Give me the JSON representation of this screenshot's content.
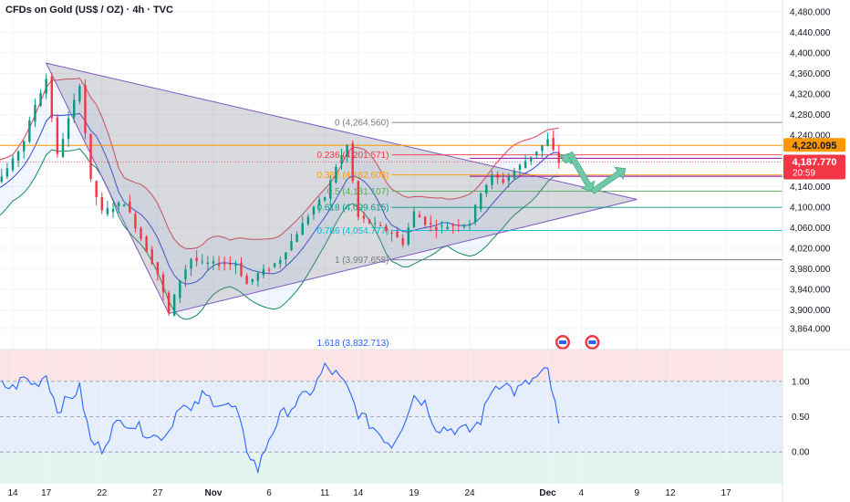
{
  "title": "CFDs on Gold (US$ / OZ) · 4h · TVC",
  "colors": {
    "candle_up": "#089981",
    "candle_down": "#f23645",
    "bb_upper": "#e0414f",
    "bb_lower": "#138a5e",
    "bb_basis": "#2a48d6",
    "triangle_fill": "#787b86",
    "triangle_stroke": "#7e57c2",
    "rsi_line": "#2962ff",
    "price_badge": "#f23645",
    "orange_level": "#ff9800",
    "arrow_fill": "#6fc9a6"
  },
  "chart_data": [
    {
      "type": "candlestick",
      "title": "CFDs on Gold (US$ / OZ) · 4h · TVC",
      "timeframe": "4h",
      "y_axis": {
        "ticks": [
          "4,480.000",
          "4,440.000",
          "4,400.000",
          "4,360.000",
          "4,320.000",
          "4,280.000",
          "4,240.000",
          "4,140.000",
          "4,100.000",
          "4,060.000",
          "4,020.000",
          "3,980.000",
          "3,940.000",
          "3,900.000",
          "3,864.000"
        ],
        "range": [
          3855,
          4485
        ]
      },
      "x_axis": {
        "ticks": [
          "14",
          "17",
          "22",
          "27",
          "Nov",
          "6",
          "11",
          "14",
          "19",
          "24",
          "Dec",
          "4",
          "9",
          "12",
          "17"
        ]
      },
      "price_labels": [
        {
          "value": "4,220.095",
          "kind": "level"
        },
        {
          "value": "4,187.770",
          "kind": "last"
        },
        {
          "value": "20:59",
          "kind": "countdown"
        }
      ],
      "fibonacci": [
        {
          "label": "0 (4,264.560)",
          "price": 4264.56
        },
        {
          "label": "0.236 (4,201.571)",
          "price": 4201.571
        },
        {
          "label": "0.382 (4,162.603)",
          "price": 4162.603
        },
        {
          "label": "0.5 (4,131.107)",
          "price": 4131.107
        },
        {
          "label": "0.618 (4,099.615)",
          "price": 4099.615
        },
        {
          "label": "0.786 (4,054.777)",
          "price": 4054.777
        },
        {
          "label": "1 (3,997.658)",
          "price": 3997.658
        },
        {
          "label": "1.618 (3,832.713)",
          "price": 3832.713
        }
      ],
      "horizontal_levels": [
        4220.095,
        4195,
        4160
      ],
      "symmetrical_triangle": {
        "top_start": 4380,
        "apex": 4115,
        "bottom_start": 3893,
        "start": "Oct 17",
        "end": "Dec 9"
      },
      "price_path": [
        {
          "date": "Oct 10",
          "close": 4120
        },
        {
          "date": "Oct 13",
          "close": 4160
        },
        {
          "date": "Oct 14",
          "close": 4190
        },
        {
          "date": "Oct 15",
          "close": 4230
        },
        {
          "date": "Oct 16",
          "close": 4300
        },
        {
          "date": "Oct 17",
          "close": 4350
        },
        {
          "date": "Oct 18",
          "close": 4200
        },
        {
          "date": "Oct 20",
          "close": 4340
        },
        {
          "date": "Oct 21",
          "close": 4150
        },
        {
          "date": "Oct 22",
          "close": 4090
        },
        {
          "date": "Oct 23",
          "close": 4100
        },
        {
          "date": "Oct 24",
          "close": 4110
        },
        {
          "date": "Oct 27",
          "close": 3970
        },
        {
          "date": "Oct 28",
          "close": 3893
        },
        {
          "date": "Oct 29",
          "close": 3960
        },
        {
          "date": "Oct 30",
          "close": 4000
        },
        {
          "date": "Oct 31",
          "close": 3990
        },
        {
          "date": "Nov 3",
          "close": 3990
        },
        {
          "date": "Nov 4",
          "close": 3950
        },
        {
          "date": "Nov 5",
          "close": 3970
        },
        {
          "date": "Nov 6",
          "close": 3980
        },
        {
          "date": "Nov 7",
          "close": 4000
        },
        {
          "date": "Nov 10",
          "close": 4100
        },
        {
          "date": "Nov 11",
          "close": 4120
        },
        {
          "date": "Nov 12",
          "close": 4180
        },
        {
          "date": "Nov 13",
          "close": 4220
        },
        {
          "date": "Nov 14",
          "close": 4080
        },
        {
          "date": "Nov 17",
          "close": 4050
        },
        {
          "date": "Nov 18",
          "close": 4030
        },
        {
          "date": "Nov 19",
          "close": 4090
        },
        {
          "date": "Nov 20",
          "close": 4070
        },
        {
          "date": "Nov 21",
          "close": 4060
        },
        {
          "date": "Nov 24",
          "close": 4070
        },
        {
          "date": "Nov 25",
          "close": 4130
        },
        {
          "date": "Nov 26",
          "close": 4160
        },
        {
          "date": "Nov 27",
          "close": 4150
        },
        {
          "date": "Nov 28",
          "close": 4170
        },
        {
          "date": "Dec 1",
          "close": 4230
        },
        {
          "date": "Dec 2",
          "close": 4187
        }
      ],
      "projection_path": [
        {
          "date": "Dec 3",
          "price": 4205
        },
        {
          "date": "Dec 5",
          "price": 4130
        },
        {
          "date": "Dec 8",
          "price": 4175
        }
      ]
    },
    {
      "type": "line",
      "indicator": "oscillator",
      "y_axis": {
        "ticks": [
          "1.00",
          "0.50",
          "0.00"
        ],
        "range": [
          -0.45,
          1.45
        ]
      },
      "levels": [
        1.0,
        0.5,
        0.0
      ],
      "series": [
        {
          "x": [
            "Oct 13",
            "Oct 14",
            "Oct 15",
            "Oct 16",
            "Oct 17",
            "Oct 18",
            "Oct 20",
            "Oct 21",
            "Oct 22",
            "Oct 23",
            "Oct 24",
            "Oct 27",
            "Oct 28",
            "Oct 29",
            "Oct 30",
            "Oct 31",
            "Nov 3",
            "Nov 4",
            "Nov 5",
            "Nov 6",
            "Nov 7",
            "Nov 10",
            "Nov 11",
            "Nov 12",
            "Nov 13",
            "Nov 14",
            "Nov 17",
            "Nov 18",
            "Nov 19",
            "Nov 20",
            "Nov 21",
            "Nov 24",
            "Nov 25",
            "Nov 26",
            "Nov 27",
            "Nov 28",
            "Dec 1",
            "Dec 2"
          ],
          "values": [
            0.95,
            0.9,
            1.05,
            0.95,
            1.1,
            0.6,
            0.9,
            0.15,
            0.05,
            0.35,
            0.45,
            0.2,
            0.3,
            0.7,
            0.55,
            0.8,
            0.6,
            0.05,
            -0.25,
            0.2,
            0.5,
            0.9,
            1.2,
            1.1,
            0.9,
            0.55,
            0.1,
            0.4,
            0.8,
            0.7,
            0.35,
            0.3,
            0.45,
            0.9,
            1.0,
            0.85,
            1.15,
            0.4
          ]
        }
      ]
    }
  ]
}
